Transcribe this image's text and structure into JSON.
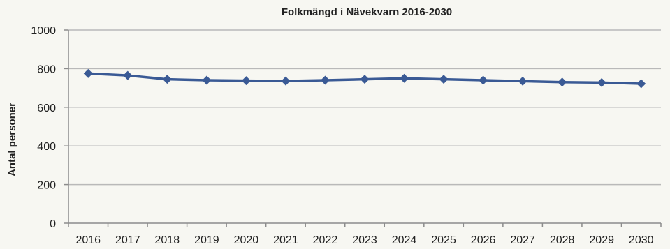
{
  "chart_data": {
    "type": "line",
    "title": "Folkmängd i Nävekvarn 2016-2030",
    "xlabel": "",
    "ylabel": "Antal personer",
    "categories": [
      "2016",
      "2017",
      "2018",
      "2019",
      "2020",
      "2021",
      "2022",
      "2023",
      "2024",
      "2025",
      "2026",
      "2027",
      "2028",
      "2029",
      "2030"
    ],
    "series": [
      {
        "values": [
          775,
          765,
          745,
          740,
          738,
          736,
          740,
          745,
          750,
          745,
          740,
          735,
          730,
          728,
          722
        ]
      }
    ],
    "ylim": [
      0,
      1000
    ],
    "yticks": [
      "0",
      "200",
      "400",
      "600",
      "800",
      "1000"
    ],
    "grid": true,
    "legend": "none",
    "colors": {
      "line": "#3a5a95",
      "marker": "#3a5a95",
      "grid": "#b9b9b9",
      "axis": "#8c8c8c",
      "background": "#f7f7f2"
    }
  }
}
